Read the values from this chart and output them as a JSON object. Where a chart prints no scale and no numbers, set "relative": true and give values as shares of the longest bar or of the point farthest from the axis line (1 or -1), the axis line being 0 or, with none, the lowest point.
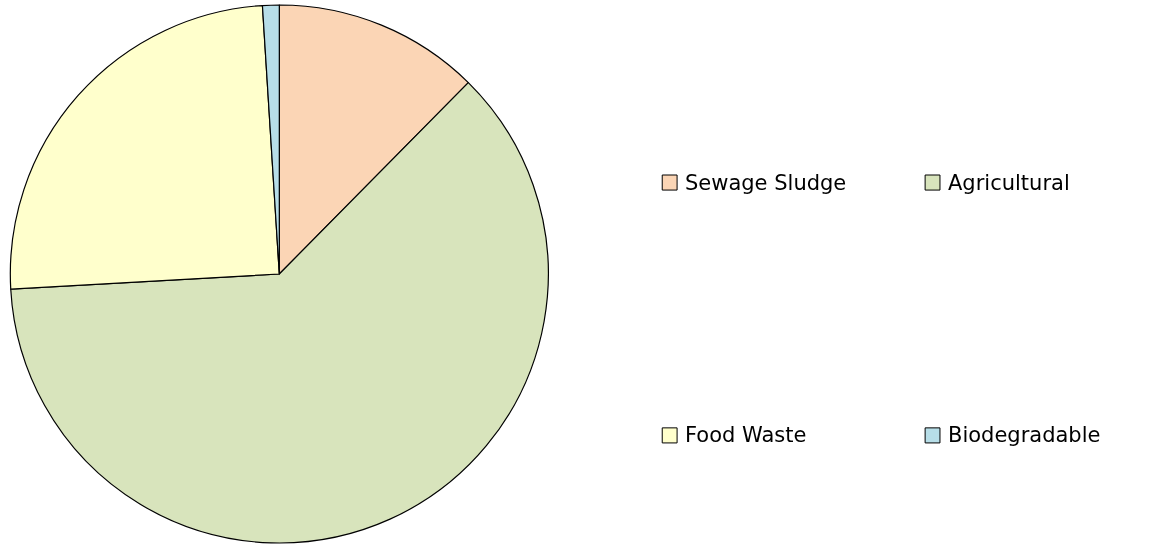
{
  "chart_data": {
    "type": "pie",
    "relative": true,
    "categories": [
      "Sewage Sludge",
      "Agricultural",
      "Food Waste",
      "Biodegradable"
    ],
    "values": [
      12.4,
      61.7,
      24.9,
      1.0
    ],
    "colors": [
      "#fbd5b5",
      "#d8e4bc",
      "#ffffcc",
      "#b7dee8"
    ],
    "legend": "right"
  }
}
